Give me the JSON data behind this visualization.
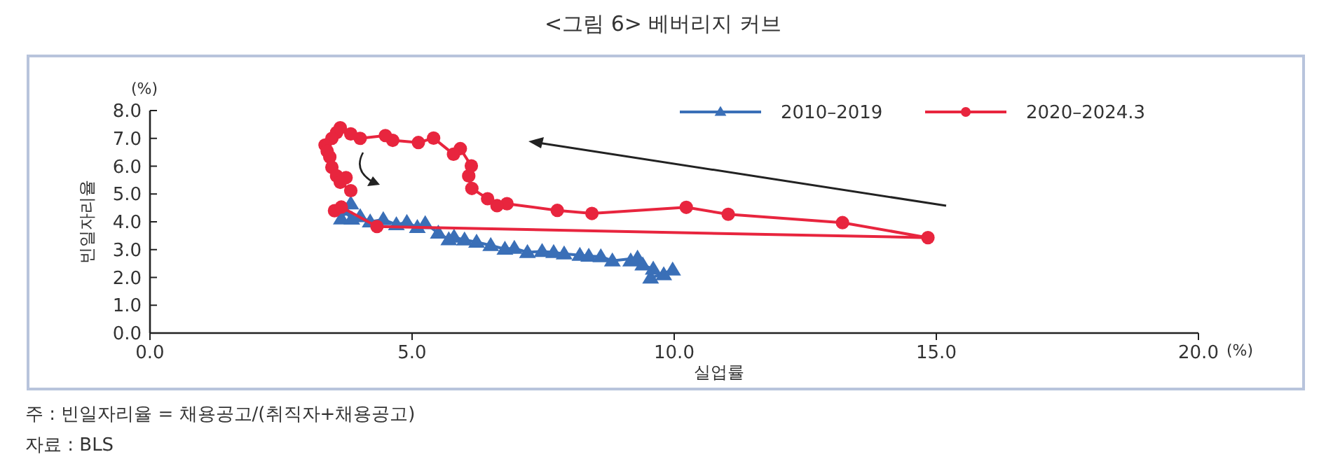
{
  "chart_data": {
    "type": "line",
    "title": "<그림 6> 베버리지 커브",
    "xlabel": "실업률",
    "ylabel": "빈일자리율",
    "annotations": [
      "(%)",
      "(%)",
      "주 : 빈일자리율 = 채용공고/(취직자+채용공고)",
      "자료 : BLS"
    ],
    "xlim": [
      0,
      20
    ],
    "ylim": [
      0,
      8
    ],
    "xticks": [
      {
        "value": 0,
        "label": "0.0"
      },
      {
        "value": 5,
        "label": "5.0"
      },
      {
        "value": 10,
        "label": "10.0"
      },
      {
        "value": 15,
        "label": "15.0"
      },
      {
        "value": 20,
        "label": "20.0"
      }
    ],
    "yticks": [
      {
        "value": 0,
        "label": "0.0"
      },
      {
        "value": 1,
        "label": "1.0"
      },
      {
        "value": 2,
        "label": "2.0"
      },
      {
        "value": 3,
        "label": "3.0"
      },
      {
        "value": 4,
        "label": "4.0"
      },
      {
        "value": 5,
        "label": "5.0"
      },
      {
        "value": 6,
        "label": "6.0"
      },
      {
        "value": 7,
        "label": "7.0"
      },
      {
        "value": 8,
        "label": "8.0"
      }
    ],
    "grid": false,
    "legend": "top right",
    "line_style": "solid",
    "series": [
      {
        "name": "2010–2019",
        "color": "#3a6fb7",
        "marker": "triangle",
        "x": [
          9.8,
          9.97,
          9.55,
          9.6,
          9.4,
          9.17,
          9.3,
          8.82,
          8.6,
          8.37,
          8.2,
          7.9,
          7.7,
          7.48,
          7.2,
          6.95,
          6.77,
          6.5,
          6.23,
          6.0,
          5.8,
          5.7,
          5.5,
          5.25,
          5.1,
          4.9,
          4.7,
          4.45,
          4.2,
          4.01,
          3.85,
          3.7,
          3.65,
          3.83
        ],
        "values": [
          2.1,
          2.27,
          1.98,
          2.3,
          2.45,
          2.6,
          2.7,
          2.6,
          2.75,
          2.77,
          2.8,
          2.85,
          2.9,
          2.94,
          2.9,
          3.05,
          3.02,
          3.15,
          3.27,
          3.35,
          3.45,
          3.36,
          3.6,
          3.94,
          3.8,
          3.98,
          3.9,
          4.08,
          4.0,
          4.19,
          4.1,
          4.42,
          4.11,
          4.65
        ]
      },
      {
        "name": "2020–2024.3",
        "color": "#e8253e",
        "marker": "circle",
        "x": [
          3.52,
          3.65,
          4.33,
          14.84,
          13.21,
          11.03,
          10.23,
          8.43,
          7.77,
          6.81,
          6.62,
          6.44,
          6.14,
          6.08,
          6.13,
          5.92,
          5.79,
          5.41,
          5.12,
          4.63,
          4.49,
          4.01,
          3.83,
          3.63,
          3.56,
          3.47,
          3.34,
          3.38,
          3.43,
          3.47,
          3.56,
          3.74,
          3.63,
          3.83
        ],
        "values": [
          4.4,
          4.53,
          3.83,
          3.43,
          3.97,
          4.27,
          4.52,
          4.3,
          4.41,
          4.65,
          4.58,
          4.83,
          5.2,
          5.65,
          6.01,
          6.63,
          6.43,
          7.01,
          6.85,
          6.93,
          7.1,
          7.0,
          7.16,
          7.38,
          7.21,
          7.0,
          6.76,
          6.54,
          6.33,
          5.96,
          5.65,
          5.59,
          5.42,
          5.12
        ]
      }
    ]
  }
}
